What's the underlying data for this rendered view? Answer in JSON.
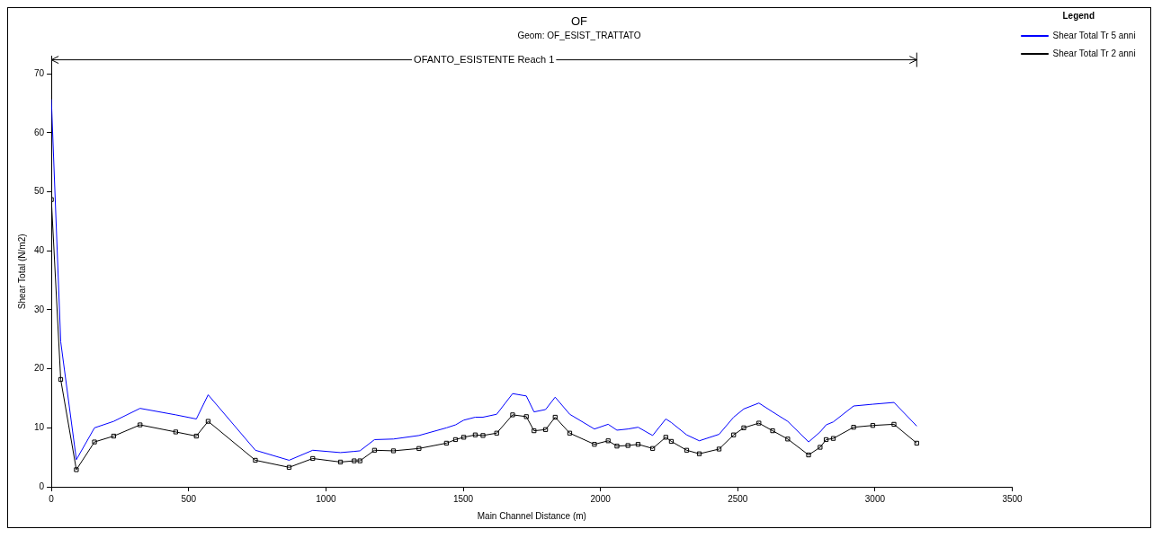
{
  "chart_data": {
    "type": "line",
    "title": "OF",
    "subtitle": "Geom: OF_ESIST_TRATTATO",
    "xlabel": "Main Channel Distance (m)",
    "ylabel": "Shear Total (N/m2)",
    "legend_title": "Legend",
    "annotations": [
      "OFANTO_ESISTENTE Reach 1"
    ],
    "x": [
      0,
      34,
      91,
      157,
      227,
      323,
      453,
      528,
      571,
      743,
      866,
      952,
      1053,
      1103,
      1124,
      1177,
      1246,
      1339,
      1439,
      1472,
      1502,
      1544,
      1572,
      1622,
      1680,
      1730,
      1758,
      1800,
      1835,
      1888,
      1978,
      2028,
      2060,
      2100,
      2137,
      2190,
      2238,
      2258,
      2314,
      2360,
      2432,
      2485,
      2522,
      2577,
      2627,
      2682,
      2758,
      2800,
      2822,
      2848,
      2922,
      2992,
      3069,
      3152
    ],
    "series": [
      {
        "name": "Shear Total Tr 5 anni",
        "color": "#0000ff",
        "marker": "none",
        "values": [
          65.7,
          24.6,
          4.6,
          10.0,
          11.1,
          13.3,
          12.2,
          11.5,
          15.6,
          6.2,
          4.5,
          6.2,
          5.8,
          6.0,
          6.1,
          8.0,
          8.1,
          8.7,
          10.0,
          10.5,
          11.3,
          11.8,
          11.8,
          12.3,
          15.8,
          15.4,
          12.7,
          13.1,
          15.2,
          12.3,
          9.8,
          10.6,
          9.6,
          9.8,
          10.1,
          8.7,
          11.5,
          10.9,
          8.8,
          7.8,
          8.9,
          11.8,
          13.2,
          14.2,
          12.7,
          11.1,
          7.6,
          9.3,
          10.5,
          11.0,
          13.7,
          14.0,
          14.3,
          10.3
        ]
      },
      {
        "name": "Shear Total Tr 2 anni",
        "color": "#000000",
        "marker": "square",
        "values": [
          48.7,
          18.2,
          2.9,
          7.6,
          8.6,
          10.5,
          9.3,
          8.6,
          11.1,
          4.5,
          3.3,
          4.8,
          4.2,
          4.4,
          4.4,
          6.2,
          6.1,
          6.5,
          7.4,
          8.0,
          8.4,
          8.8,
          8.7,
          9.1,
          12.2,
          11.9,
          9.5,
          9.7,
          11.8,
          9.1,
          7.2,
          7.8,
          6.9,
          7.0,
          7.2,
          6.5,
          8.4,
          7.7,
          6.2,
          5.6,
          6.4,
          8.8,
          10.0,
          10.8,
          9.5,
          8.1,
          5.4,
          6.7,
          8.0,
          8.2,
          10.1,
          10.4,
          10.6,
          7.4
        ]
      }
    ],
    "xlim": [
      0,
      3500
    ],
    "xticks": [
      0,
      500,
      1000,
      1500,
      2000,
      2500,
      3000,
      3500
    ],
    "ylim": [
      0,
      73
    ],
    "yticks": [
      0,
      10,
      20,
      30,
      40,
      50,
      60,
      70
    ],
    "grid": false,
    "legend": "top right",
    "line_style": "solid"
  }
}
